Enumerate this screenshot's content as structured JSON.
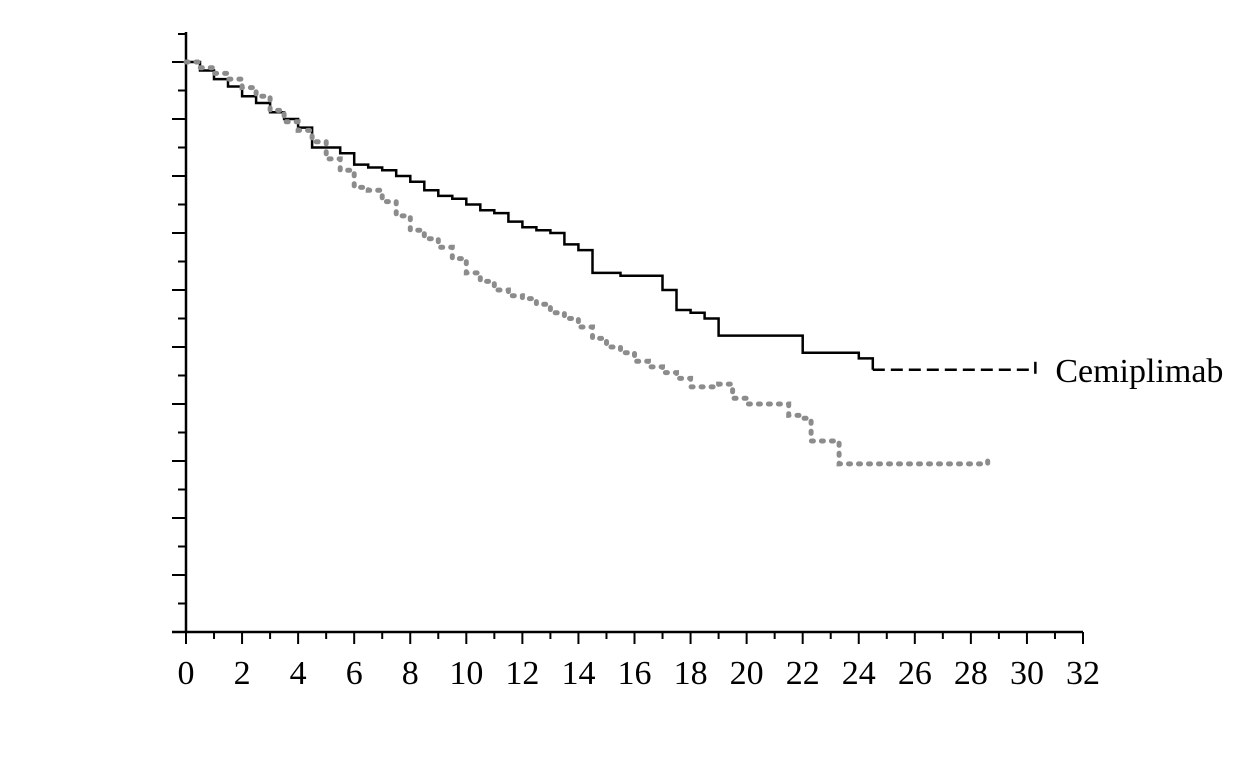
{
  "chart_data": {
    "type": "line",
    "subtype": "kaplan-meier step curve",
    "title": "",
    "xlabel": "",
    "ylabel": "",
    "xlim": [
      0,
      32
    ],
    "ylim": [
      0,
      1.0
    ],
    "x_ticks": [
      0,
      2,
      4,
      6,
      8,
      10,
      12,
      14,
      16,
      18,
      20,
      22,
      24,
      26,
      28,
      30,
      32
    ],
    "x_tick_labels": [
      "0",
      "2",
      "4",
      "6",
      "8",
      "10",
      "12",
      "14",
      "16",
      "18",
      "20",
      "22",
      "24",
      "26",
      "28",
      "30",
      "32"
    ],
    "x_minor_ticks_per_major": 2,
    "y_major_ticks": [
      0.1,
      0.2,
      0.3,
      0.4,
      0.5,
      0.6,
      0.7,
      0.8,
      0.9,
      1.0
    ],
    "y_minor_ticks_per_major": 2,
    "y_tick_labels_visible": false,
    "grid": false,
    "legend": "none",
    "series": [
      {
        "name": "Cemiplimab",
        "color": "#000000",
        "style": "solid-then-dashed",
        "dashed_from_x": 24.5,
        "x": [
          0,
          0.5,
          1.0,
          1.5,
          2.0,
          2.5,
          3.0,
          3.5,
          4.0,
          4.5,
          5.0,
          5.5,
          6.0,
          6.5,
          7.0,
          7.5,
          8.0,
          8.5,
          9.0,
          9.5,
          10.0,
          10.5,
          11.0,
          11.5,
          12.0,
          12.5,
          13.0,
          13.5,
          14.0,
          14.5,
          15.0,
          15.5,
          16.0,
          16.5,
          17.0,
          17.5,
          18.0,
          18.5,
          19.0,
          19.5,
          20.0,
          20.5,
          21.0,
          21.5,
          22.0,
          22.5,
          23.0,
          23.5,
          24.0,
          24.5,
          25.0,
          26.0,
          27.0,
          28.0,
          29.0,
          30.3
        ],
        "y": [
          1.0,
          0.985,
          0.97,
          0.957,
          0.94,
          0.928,
          0.912,
          0.9,
          0.885,
          0.85,
          0.85,
          0.84,
          0.82,
          0.815,
          0.81,
          0.8,
          0.79,
          0.775,
          0.765,
          0.76,
          0.75,
          0.74,
          0.735,
          0.72,
          0.71,
          0.705,
          0.7,
          0.68,
          0.67,
          0.63,
          0.63,
          0.625,
          0.625,
          0.625,
          0.6,
          0.565,
          0.56,
          0.55,
          0.52,
          0.52,
          0.52,
          0.52,
          0.52,
          0.52,
          0.49,
          0.49,
          0.49,
          0.49,
          0.48,
          0.46,
          0.46,
          0.46,
          0.46,
          0.46,
          0.46,
          0.46
        ]
      },
      {
        "name": "",
        "color": "#8c8c8c",
        "style": "dotted",
        "x": [
          0,
          0.5,
          1.0,
          1.5,
          2.0,
          2.5,
          3.0,
          3.5,
          4.0,
          4.5,
          5.0,
          5.5,
          6.0,
          6.5,
          7.0,
          7.5,
          8.0,
          8.5,
          9.0,
          9.5,
          10.0,
          10.5,
          11.0,
          11.5,
          12.0,
          12.5,
          13.0,
          13.5,
          14.0,
          14.5,
          15.0,
          15.5,
          16.0,
          16.5,
          17.0,
          17.5,
          18.0,
          18.5,
          19.0,
          19.5,
          20.0,
          20.5,
          21.0,
          21.5,
          22.0,
          22.3,
          22.8,
          23.3,
          24.0,
          25.0,
          26.0,
          27.0,
          28.0,
          28.6
        ],
        "y": [
          1.0,
          0.99,
          0.98,
          0.97,
          0.955,
          0.94,
          0.915,
          0.895,
          0.88,
          0.86,
          0.83,
          0.81,
          0.78,
          0.775,
          0.755,
          0.73,
          0.705,
          0.69,
          0.675,
          0.655,
          0.63,
          0.615,
          0.6,
          0.59,
          0.585,
          0.575,
          0.56,
          0.55,
          0.535,
          0.515,
          0.5,
          0.49,
          0.475,
          0.465,
          0.455,
          0.445,
          0.43,
          0.43,
          0.435,
          0.41,
          0.4,
          0.4,
          0.4,
          0.38,
          0.375,
          0.335,
          0.335,
          0.295,
          0.295,
          0.295,
          0.295,
          0.295,
          0.295,
          0.3
        ]
      }
    ]
  }
}
